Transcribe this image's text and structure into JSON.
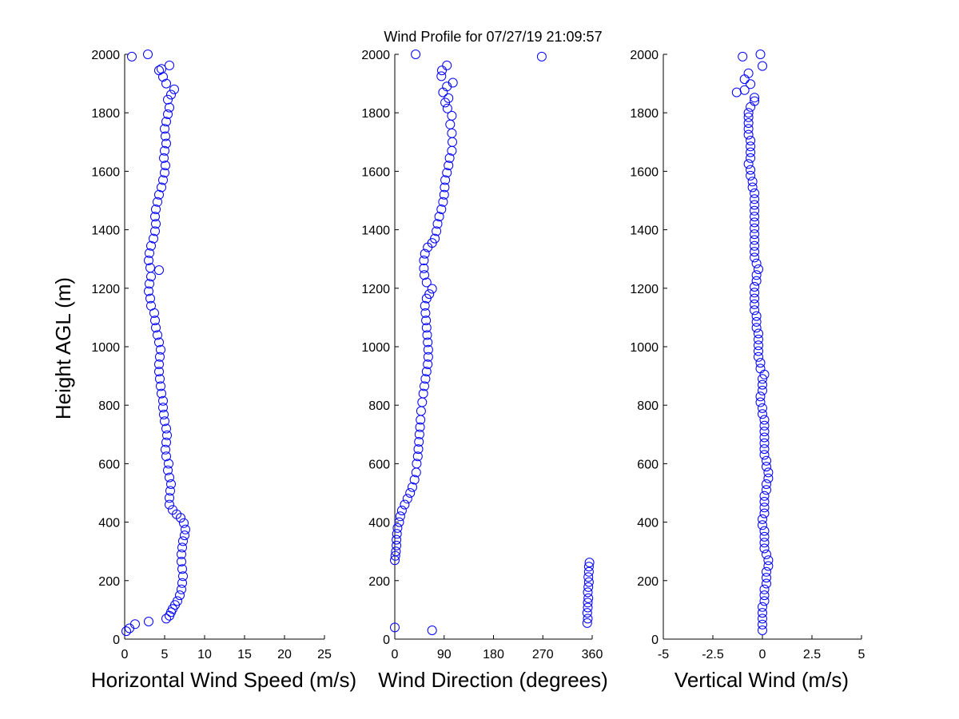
{
  "title": "Wind Profile for  07/27/19 21:09:57",
  "ylabel": "Height AGL (m)",
  "y_ticks": [
    "0",
    "200",
    "400",
    "600",
    "800",
    "1000",
    "1200",
    "1400",
    "1600",
    "1800",
    "2000"
  ],
  "ylim": [
    0,
    2000
  ],
  "chart_data": [
    {
      "type": "scatter",
      "xlabel": "Horizontal Wind Speed (m/s)",
      "ylabel": "Height AGL (m)",
      "xlim": [
        0,
        25
      ],
      "ylim": [
        0,
        2000
      ],
      "x_ticks": [
        0,
        5,
        10,
        15,
        20,
        25
      ],
      "x_tick_labels": [
        "0",
        "5",
        "10",
        "15",
        "20",
        "25"
      ],
      "marker": "open-circle",
      "color": "#0000ff",
      "points": [
        [
          0.2,
          27
        ],
        [
          0.6,
          37
        ],
        [
          1.3,
          51
        ],
        [
          3.0,
          60
        ],
        [
          5.2,
          70
        ],
        [
          5.6,
          80
        ],
        [
          5.8,
          92
        ],
        [
          6.0,
          103
        ],
        [
          6.3,
          117
        ],
        [
          6.6,
          130
        ],
        [
          6.9,
          150
        ],
        [
          7.1,
          170
        ],
        [
          7.2,
          192
        ],
        [
          7.3,
          215
        ],
        [
          7.2,
          240
        ],
        [
          7.1,
          265
        ],
        [
          7.1,
          290
        ],
        [
          7.2,
          313
        ],
        [
          7.3,
          335
        ],
        [
          7.5,
          355
        ],
        [
          7.6,
          375
        ],
        [
          7.4,
          397
        ],
        [
          7.0,
          415
        ],
        [
          6.5,
          427
        ],
        [
          6.0,
          442
        ],
        [
          5.6,
          460
        ],
        [
          5.6,
          483
        ],
        [
          5.7,
          507
        ],
        [
          5.8,
          530
        ],
        [
          5.6,
          553
        ],
        [
          5.4,
          577
        ],
        [
          5.5,
          600
        ],
        [
          5.2,
          625
        ],
        [
          5.1,
          648
        ],
        [
          5.2,
          673
        ],
        [
          5.3,
          697
        ],
        [
          5.2,
          720
        ],
        [
          5.0,
          745
        ],
        [
          4.9,
          768
        ],
        [
          4.8,
          792
        ],
        [
          4.8,
          815
        ],
        [
          4.6,
          840
        ],
        [
          4.5,
          865
        ],
        [
          4.4,
          890
        ],
        [
          4.3,
          915
        ],
        [
          4.3,
          940
        ],
        [
          4.4,
          965
        ],
        [
          4.5,
          990
        ],
        [
          4.3,
          1015
        ],
        [
          4.1,
          1040
        ],
        [
          3.9,
          1065
        ],
        [
          3.8,
          1090
        ],
        [
          3.7,
          1115
        ],
        [
          3.3,
          1140
        ],
        [
          3.2,
          1165
        ],
        [
          3.0,
          1190
        ],
        [
          3.1,
          1215
        ],
        [
          3.3,
          1240
        ],
        [
          4.3,
          1262
        ],
        [
          3.2,
          1270
        ],
        [
          3.0,
          1295
        ],
        [
          3.1,
          1320
        ],
        [
          3.3,
          1345
        ],
        [
          3.6,
          1370
        ],
        [
          3.8,
          1395
        ],
        [
          3.9,
          1420
        ],
        [
          3.8,
          1445
        ],
        [
          3.9,
          1470
        ],
        [
          4.1,
          1495
        ],
        [
          4.3,
          1520
        ],
        [
          4.6,
          1545
        ],
        [
          4.8,
          1570
        ],
        [
          5.0,
          1595
        ],
        [
          5.1,
          1620
        ],
        [
          4.9,
          1645
        ],
        [
          5.0,
          1670
        ],
        [
          5.2,
          1695
        ],
        [
          5.1,
          1720
        ],
        [
          5.0,
          1745
        ],
        [
          5.2,
          1770
        ],
        [
          5.4,
          1795
        ],
        [
          5.6,
          1818
        ],
        [
          5.4,
          1845
        ],
        [
          5.8,
          1862
        ],
        [
          6.2,
          1880
        ],
        [
          5.2,
          1900
        ],
        [
          4.8,
          1923
        ],
        [
          4.3,
          1945
        ],
        [
          4.6,
          1950
        ],
        [
          5.6,
          1962
        ],
        [
          0.9,
          1992
        ],
        [
          2.9,
          2000
        ]
      ]
    },
    {
      "type": "scatter",
      "xlabel": "Wind Direction (degrees)",
      "ylabel": "",
      "xlim": [
        0,
        360
      ],
      "ylim": [
        0,
        2000
      ],
      "x_ticks": [
        0,
        90,
        180,
        270,
        360
      ],
      "x_tick_labels": [
        "0",
        "90",
        "180",
        "270",
        "360"
      ],
      "marker": "open-circle",
      "color": "#0000ff",
      "points": [
        [
          0,
          40
        ],
        [
          68,
          30
        ],
        [
          351,
          55
        ],
        [
          352,
          70
        ],
        [
          351,
          90
        ],
        [
          352,
          108
        ],
        [
          352,
          125
        ],
        [
          353,
          140
        ],
        [
          352,
          160
        ],
        [
          353,
          178
        ],
        [
          354,
          195
        ],
        [
          353,
          212
        ],
        [
          354,
          230
        ],
        [
          354,
          248
        ],
        [
          355,
          262
        ],
        [
          0,
          270
        ],
        [
          1,
          285
        ],
        [
          2,
          300
        ],
        [
          3,
          320
        ],
        [
          3,
          340
        ],
        [
          4,
          360
        ],
        [
          5,
          380
        ],
        [
          8,
          400
        ],
        [
          10,
          420
        ],
        [
          13,
          440
        ],
        [
          18,
          460
        ],
        [
          23,
          480
        ],
        [
          28,
          500
        ],
        [
          32,
          520
        ],
        [
          36,
          545
        ],
        [
          39,
          570
        ],
        [
          40,
          600
        ],
        [
          42,
          625
        ],
        [
          43,
          650
        ],
        [
          44,
          675
        ],
        [
          45,
          700
        ],
        [
          46,
          725
        ],
        [
          47,
          750
        ],
        [
          48,
          780
        ],
        [
          50,
          810
        ],
        [
          52,
          840
        ],
        [
          54,
          865
        ],
        [
          56,
          890
        ],
        [
          58,
          915
        ],
        [
          60,
          940
        ],
        [
          61,
          965
        ],
        [
          61,
          990
        ],
        [
          60,
          1015
        ],
        [
          59,
          1040
        ],
        [
          58,
          1065
        ],
        [
          57,
          1090
        ],
        [
          56,
          1115
        ],
        [
          55,
          1140
        ],
        [
          58,
          1165
        ],
        [
          63,
          1180
        ],
        [
          68,
          1198
        ],
        [
          58,
          1220
        ],
        [
          54,
          1245
        ],
        [
          53,
          1268
        ],
        [
          53,
          1295
        ],
        [
          55,
          1318
        ],
        [
          60,
          1340
        ],
        [
          68,
          1355
        ],
        [
          73,
          1370
        ],
        [
          76,
          1395
        ],
        [
          78,
          1420
        ],
        [
          81,
          1445
        ],
        [
          85,
          1470
        ],
        [
          88,
          1495
        ],
        [
          90,
          1520
        ],
        [
          91,
          1545
        ],
        [
          92,
          1570
        ],
        [
          95,
          1595
        ],
        [
          98,
          1620
        ],
        [
          100,
          1645
        ],
        [
          104,
          1670
        ],
        [
          105,
          1700
        ],
        [
          104,
          1730
        ],
        [
          101,
          1760
        ],
        [
          104,
          1790
        ],
        [
          96,
          1815
        ],
        [
          92,
          1835
        ],
        [
          98,
          1850
        ],
        [
          88,
          1870
        ],
        [
          95,
          1890
        ],
        [
          106,
          1903
        ],
        [
          85,
          1925
        ],
        [
          86,
          1945
        ],
        [
          95,
          1962
        ],
        [
          38,
          2000
        ],
        [
          268,
          1992
        ]
      ]
    },
    {
      "type": "scatter",
      "xlabel": "Vertical Wind (m/s)",
      "ylabel": "",
      "xlim": [
        -5,
        5
      ],
      "ylim": [
        0,
        2000
      ],
      "x_ticks": [
        -5,
        -2.5,
        0,
        2.5,
        5
      ],
      "x_tick_labels": [
        "-5",
        "-2.5",
        "0",
        "2.5",
        "5"
      ],
      "marker": "open-circle",
      "color": "#0000ff",
      "points": [
        [
          0.0,
          30
        ],
        [
          0.0,
          50
        ],
        [
          0.0,
          70
        ],
        [
          0.0,
          90
        ],
        [
          0.0,
          110
        ],
        [
          0.1,
          130
        ],
        [
          0.1,
          150
        ],
        [
          0.1,
          170
        ],
        [
          0.2,
          190
        ],
        [
          0.2,
          210
        ],
        [
          0.2,
          230
        ],
        [
          0.3,
          250
        ],
        [
          0.3,
          270
        ],
        [
          0.2,
          290
        ],
        [
          0.1,
          310
        ],
        [
          0.1,
          330
        ],
        [
          0.1,
          350
        ],
        [
          0.1,
          370
        ],
        [
          0.0,
          390
        ],
        [
          0.0,
          410
        ],
        [
          0.1,
          430
        ],
        [
          0.1,
          450
        ],
        [
          0.1,
          470
        ],
        [
          0.1,
          490
        ],
        [
          0.2,
          510
        ],
        [
          0.2,
          530
        ],
        [
          0.3,
          550
        ],
        [
          0.3,
          570
        ],
        [
          0.2,
          590
        ],
        [
          0.2,
          610
        ],
        [
          0.1,
          630
        ],
        [
          0.1,
          650
        ],
        [
          0.1,
          670
        ],
        [
          0.1,
          690
        ],
        [
          0.1,
          710
        ],
        [
          0.1,
          730
        ],
        [
          0.1,
          750
        ],
        [
          0.0,
          770
        ],
        [
          0.0,
          790
        ],
        [
          -0.1,
          810
        ],
        [
          -0.1,
          830
        ],
        [
          0.0,
          850
        ],
        [
          0.0,
          870
        ],
        [
          0.0,
          890
        ],
        [
          0.1,
          905
        ],
        [
          -0.1,
          925
        ],
        [
          -0.1,
          945
        ],
        [
          -0.2,
          965
        ],
        [
          -0.2,
          985
        ],
        [
          -0.2,
          1005
        ],
        [
          -0.2,
          1025
        ],
        [
          -0.2,
          1045
        ],
        [
          -0.3,
          1065
        ],
        [
          -0.3,
          1085
        ],
        [
          -0.3,
          1105
        ],
        [
          -0.4,
          1125
        ],
        [
          -0.4,
          1145
        ],
        [
          -0.4,
          1165
        ],
        [
          -0.4,
          1185
        ],
        [
          -0.4,
          1205
        ],
        [
          -0.3,
          1225
        ],
        [
          -0.3,
          1245
        ],
        [
          -0.2,
          1265
        ],
        [
          -0.3,
          1285
        ],
        [
          -0.4,
          1305
        ],
        [
          -0.4,
          1325
        ],
        [
          -0.4,
          1345
        ],
        [
          -0.4,
          1365
        ],
        [
          -0.4,
          1385
        ],
        [
          -0.4,
          1405
        ],
        [
          -0.4,
          1425
        ],
        [
          -0.4,
          1445
        ],
        [
          -0.4,
          1465
        ],
        [
          -0.4,
          1485
        ],
        [
          -0.4,
          1505
        ],
        [
          -0.4,
          1525
        ],
        [
          -0.5,
          1545
        ],
        [
          -0.5,
          1565
        ],
        [
          -0.6,
          1585
        ],
        [
          -0.6,
          1605
        ],
        [
          -0.7,
          1625
        ],
        [
          -0.6,
          1645
        ],
        [
          -0.6,
          1665
        ],
        [
          -0.6,
          1685
        ],
        [
          -0.6,
          1705
        ],
        [
          -0.7,
          1725
        ],
        [
          -0.7,
          1745
        ],
        [
          -0.7,
          1765
        ],
        [
          -0.7,
          1785
        ],
        [
          -0.7,
          1800
        ],
        [
          -0.6,
          1820
        ],
        [
          -0.4,
          1840
        ],
        [
          -0.4,
          1852
        ],
        [
          -1.3,
          1870
        ],
        [
          -0.9,
          1878
        ],
        [
          -0.6,
          1898
        ],
        [
          -0.9,
          1915
        ],
        [
          -0.7,
          1935
        ],
        [
          0.0,
          1960
        ],
        [
          -1.0,
          1992
        ],
        [
          -0.1,
          2000
        ]
      ]
    }
  ]
}
